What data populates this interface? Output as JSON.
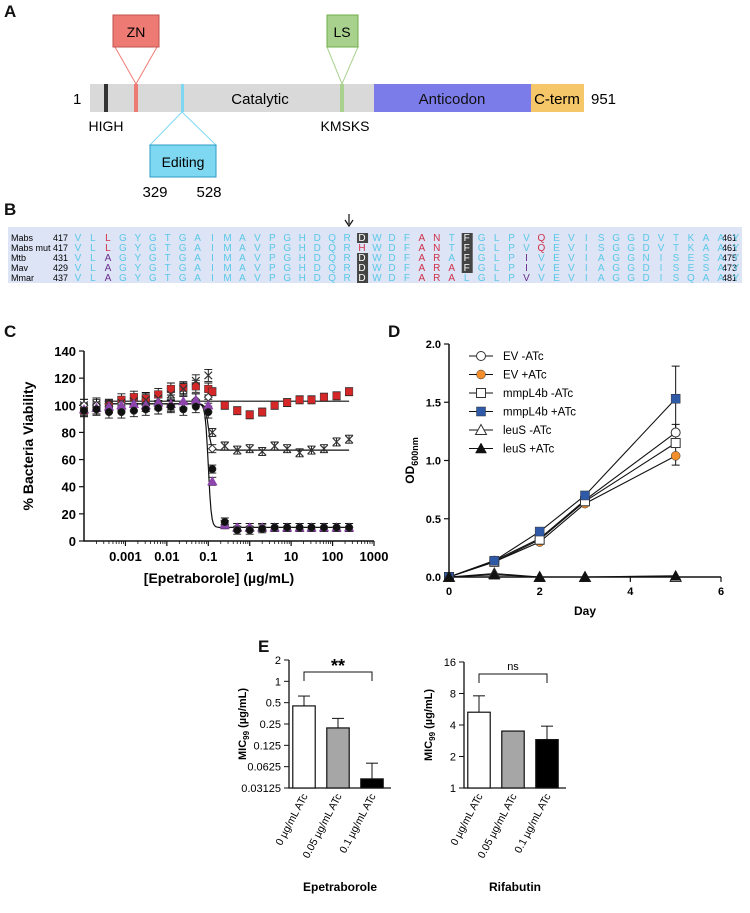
{
  "panels": {
    "a": "A",
    "b": "B",
    "c": "C",
    "d": "D",
    "e": "E"
  },
  "domain_map": {
    "start": "1",
    "end": "951",
    "catalytic": "Catalytic",
    "anticodon": "Anticodon",
    "cterm": "C-term",
    "zn": "ZN",
    "ls": "LS",
    "editing": "Editing",
    "editing_start": "329",
    "editing_end": "528",
    "high": "HIGH",
    "kmsks": "KMSKS",
    "colors": {
      "catalytic": "#d9d9d9",
      "anticodon": "#7b7bea",
      "cterm": "#f6c768",
      "zn": "#ee7b73",
      "ls": "#a9d18e",
      "editing": "#7fd8f2",
      "high": "#333333"
    }
  },
  "alignment": {
    "rows": [
      {
        "name": "Mabs",
        "start": "417",
        "end": "461",
        "seq": "VLLGYGTGAIMAVPGHDQRDWDFANTFGLPVQEVISGGDVTKAAY"
      },
      {
        "name": "Mabs mut",
        "start": "417",
        "end": "461",
        "seq": "VLLGYGTGAIMAVPGHDQRHWDFANTFGLPVQEVISGGDVTKAAY"
      },
      {
        "name": "Mtb",
        "start": "431",
        "end": "475",
        "seq": "VLAGYGTGAIMAVPGHDQRDWDFARAFGLPIVEVIAGGNISESAY"
      },
      {
        "name": "Mav",
        "start": "429",
        "end": "473",
        "seq": "VLAGYGTGAIMAVPGHDQRDWDFARAFGLPIVEVIAGGDISESAY"
      },
      {
        "name": "Mmar",
        "start": "437",
        "end": "481",
        "seq": "VLAGYGTGAIMAVPGHDQRDWDFARALGLPVVEVIAGGDISQAAY"
      }
    ]
  },
  "chart_data": [
    {
      "panel": "C",
      "type": "scatter",
      "xlabel": "[Epetraborole] (µg/mL)",
      "ylabel": "% Bacteria Viability",
      "xscale": "log",
      "xlim": [
        0.0001,
        1000
      ],
      "ylim": [
        0,
        140
      ],
      "xticks": [
        "0.001",
        "0.01",
        "0.1",
        "1",
        "10",
        "100",
        "1000"
      ],
      "yticks": [
        "0",
        "20",
        "40",
        "60",
        "80",
        "100",
        "120",
        "140"
      ],
      "x": [
        0.0001,
        0.0002,
        0.0004,
        0.0008,
        0.0016,
        0.0031,
        0.0062,
        0.0125,
        0.025,
        0.05,
        0.1,
        0.125,
        0.25,
        0.5,
        1,
        2,
        4,
        8,
        16,
        31,
        62,
        125,
        250
      ],
      "series": [
        {
          "marker": "square",
          "color": "#d62728",
          "values": [
            96,
            98,
            100,
            104,
            106,
            105,
            108,
            112,
            113,
            114,
            112,
            110,
            100,
            96,
            93,
            95,
            100,
            102,
            104,
            104,
            106,
            107,
            110
          ]
        },
        {
          "marker": "x",
          "color": "#333333",
          "values": [
            100,
            101,
            100,
            102,
            103,
            104,
            105,
            108,
            112,
            118,
            122,
            80,
            70,
            67,
            68,
            66,
            70,
            68,
            65,
            67,
            68,
            73,
            75
          ]
        },
        {
          "marker": "diamond-open",
          "color": "#333333",
          "values": [
            100,
            100,
            99,
            101,
            100,
            100,
            101,
            100,
            102,
            104,
            106,
            68,
            12,
            10,
            10,
            10,
            10,
            10,
            10,
            10,
            10,
            10,
            10
          ]
        },
        {
          "marker": "triangle",
          "color": "#8e44ad",
          "values": [
            97,
            98,
            99,
            100,
            101,
            100,
            102,
            101,
            103,
            104,
            100,
            44,
            12,
            10,
            10,
            10,
            10,
            10,
            10,
            10,
            10,
            10,
            10
          ]
        },
        {
          "marker": "circle",
          "color": "#111111",
          "values": [
            96,
            97,
            95,
            95,
            96,
            97,
            98,
            99,
            97,
            99,
            95,
            53,
            14,
            8,
            8,
            9,
            10,
            10,
            10,
            10,
            10,
            10,
            10
          ]
        }
      ],
      "fit_lines": [
        {
          "top": 103,
          "bottom": 103,
          "ic50": 0.1
        },
        {
          "top": 101,
          "bottom": 67,
          "ic50": 0.1
        },
        {
          "top": 101,
          "bottom": 10,
          "ic50": 0.1
        }
      ]
    },
    {
      "panel": "D",
      "type": "line",
      "xlabel": "Day",
      "ylabel": "OD600nm",
      "ylabel_main": "OD",
      "ylabel_sub": "600nm",
      "xlim": [
        0,
        6
      ],
      "ylim": [
        0,
        2.0
      ],
      "xticks": [
        "0",
        "2",
        "4",
        "6"
      ],
      "yticks": [
        "0.0",
        "0.5",
        "1.0",
        "1.5",
        "2.0"
      ],
      "x": [
        0,
        1,
        2,
        3,
        5
      ],
      "series": [
        {
          "name": "EV -ATc",
          "marker": "circle-open",
          "color": "#333333",
          "values": [
            0.0,
            0.14,
            0.33,
            0.66,
            1.24
          ]
        },
        {
          "name": "EV +ATc",
          "marker": "circle",
          "color": "#f28e2b",
          "values": [
            0.0,
            0.13,
            0.3,
            0.63,
            1.04
          ]
        },
        {
          "name": "mmpL4b -ATc",
          "marker": "square-open",
          "color": "#333333",
          "values": [
            0.0,
            0.13,
            0.32,
            0.65,
            1.15
          ]
        },
        {
          "name": "mmpL4b +ATc",
          "marker": "square",
          "color": "#2e5aa8",
          "values": [
            0.0,
            0.14,
            0.39,
            0.7,
            1.53
          ]
        },
        {
          "name": "leuS -ATc",
          "marker": "triangle-open",
          "color": "#333333",
          "values": [
            0.0,
            0.03,
            0.0,
            0.0,
            0.0
          ]
        },
        {
          "name": "leuS +ATc",
          "marker": "triangle",
          "color": "#111111",
          "values": [
            0.0,
            0.02,
            0.0,
            0.0,
            0.01
          ]
        }
      ]
    },
    {
      "panel": "E1",
      "type": "bar",
      "title": "Epetraborole",
      "ylabel": "MIC99 (µg/mL)",
      "ylabel_main": "MIC",
      "ylabel_sub": "99",
      "ylabel_unit": " (µg/mL)",
      "yscale": "log2",
      "ylim": [
        0.03125,
        2
      ],
      "yticks": [
        "0.03125",
        "0.0625",
        "0.125",
        "0.25",
        "0.5",
        "1",
        "2"
      ],
      "categories": [
        "0 µg/mL ATc",
        "0.05 µg/mL ATc",
        "0.1 µg/mL ATc"
      ],
      "values": [
        0.45,
        0.22,
        0.042
      ],
      "errors_upper": [
        0.62,
        0.3,
        0.07
      ],
      "bar_colors": [
        "#ffffff",
        "#a6a6a6",
        "#000000"
      ],
      "significance": "**"
    },
    {
      "panel": "E2",
      "type": "bar",
      "title": "Rifabutin",
      "ylabel": "MIC99 (µg/mL)",
      "ylabel_main": "MIC",
      "ylabel_sub": "99",
      "ylabel_unit": " (µg/mL)",
      "yscale": "log2",
      "ylim": [
        1,
        16
      ],
      "yticks": [
        "1",
        "2",
        "4",
        "8",
        "16"
      ],
      "categories": [
        "0 µg/mL ATc",
        "0.05 µg/mL ATc",
        "0.1 µg/mL ATc"
      ],
      "values": [
        5.3,
        3.5,
        2.9
      ],
      "errors_upper": [
        7.6,
        3.5,
        3.9
      ],
      "bar_colors": [
        "#ffffff",
        "#a6a6a6",
        "#000000"
      ],
      "significance": "ns"
    }
  ]
}
